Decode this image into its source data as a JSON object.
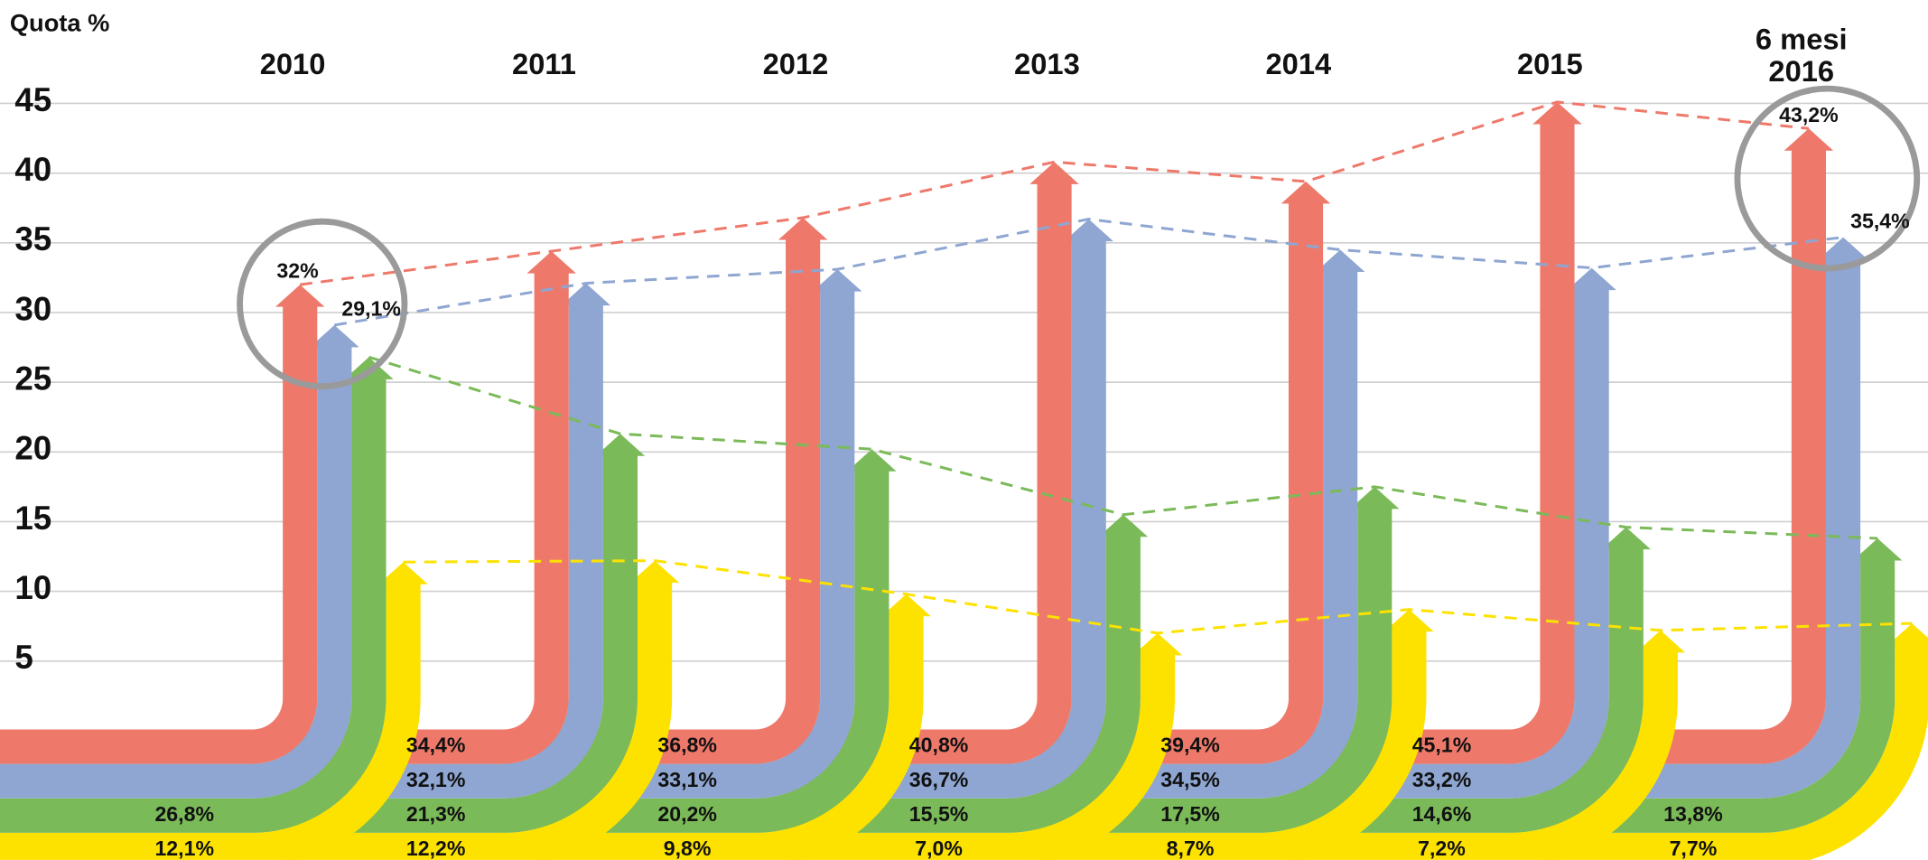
{
  "chart_data": {
    "type": "arrow",
    "y_label": "Quota %",
    "categories": [
      "2010",
      "2011",
      "2012",
      "2013",
      "2014",
      "2015",
      "6 mesi 2016"
    ],
    "ylim": [
      0,
      45
    ],
    "yticks": [
      5,
      10,
      15,
      20,
      25,
      30,
      35,
      40,
      45
    ],
    "grid": true,
    "series": [
      {
        "color": "#ee796b",
        "values": [
          32,
          34.4,
          36.8,
          40.8,
          39.4,
          45.1,
          43.2
        ],
        "value_labels": [
          "32%",
          "34,4%",
          "36,8%",
          "40,8%",
          "39,4%",
          "45,1%",
          "43,2%"
        ]
      },
      {
        "color": "#8ea6d1",
        "values": [
          29.1,
          32.1,
          33.1,
          36.7,
          34.5,
          33.2,
          35.4
        ],
        "value_labels": [
          "29,1%",
          "32,1%",
          "33,1%",
          "36,7%",
          "34,5%",
          "33,2%",
          "35,4%"
        ]
      },
      {
        "color": "#7bba59",
        "values": [
          26.8,
          21.3,
          20.2,
          15.5,
          17.5,
          14.6,
          13.8
        ],
        "value_labels": [
          "26,8%",
          "21,3%",
          "20,2%",
          "15,5%",
          "17,5%",
          "14,6%",
          "13,8%"
        ]
      },
      {
        "color": "#fde200",
        "values": [
          12.1,
          12.2,
          9.8,
          7.0,
          8.7,
          7.2,
          7.7
        ],
        "value_labels": [
          "12,1%",
          "12,2%",
          "9,8%",
          "7,0%",
          "8,7%",
          "7,2%",
          "7,7%"
        ]
      }
    ]
  }
}
